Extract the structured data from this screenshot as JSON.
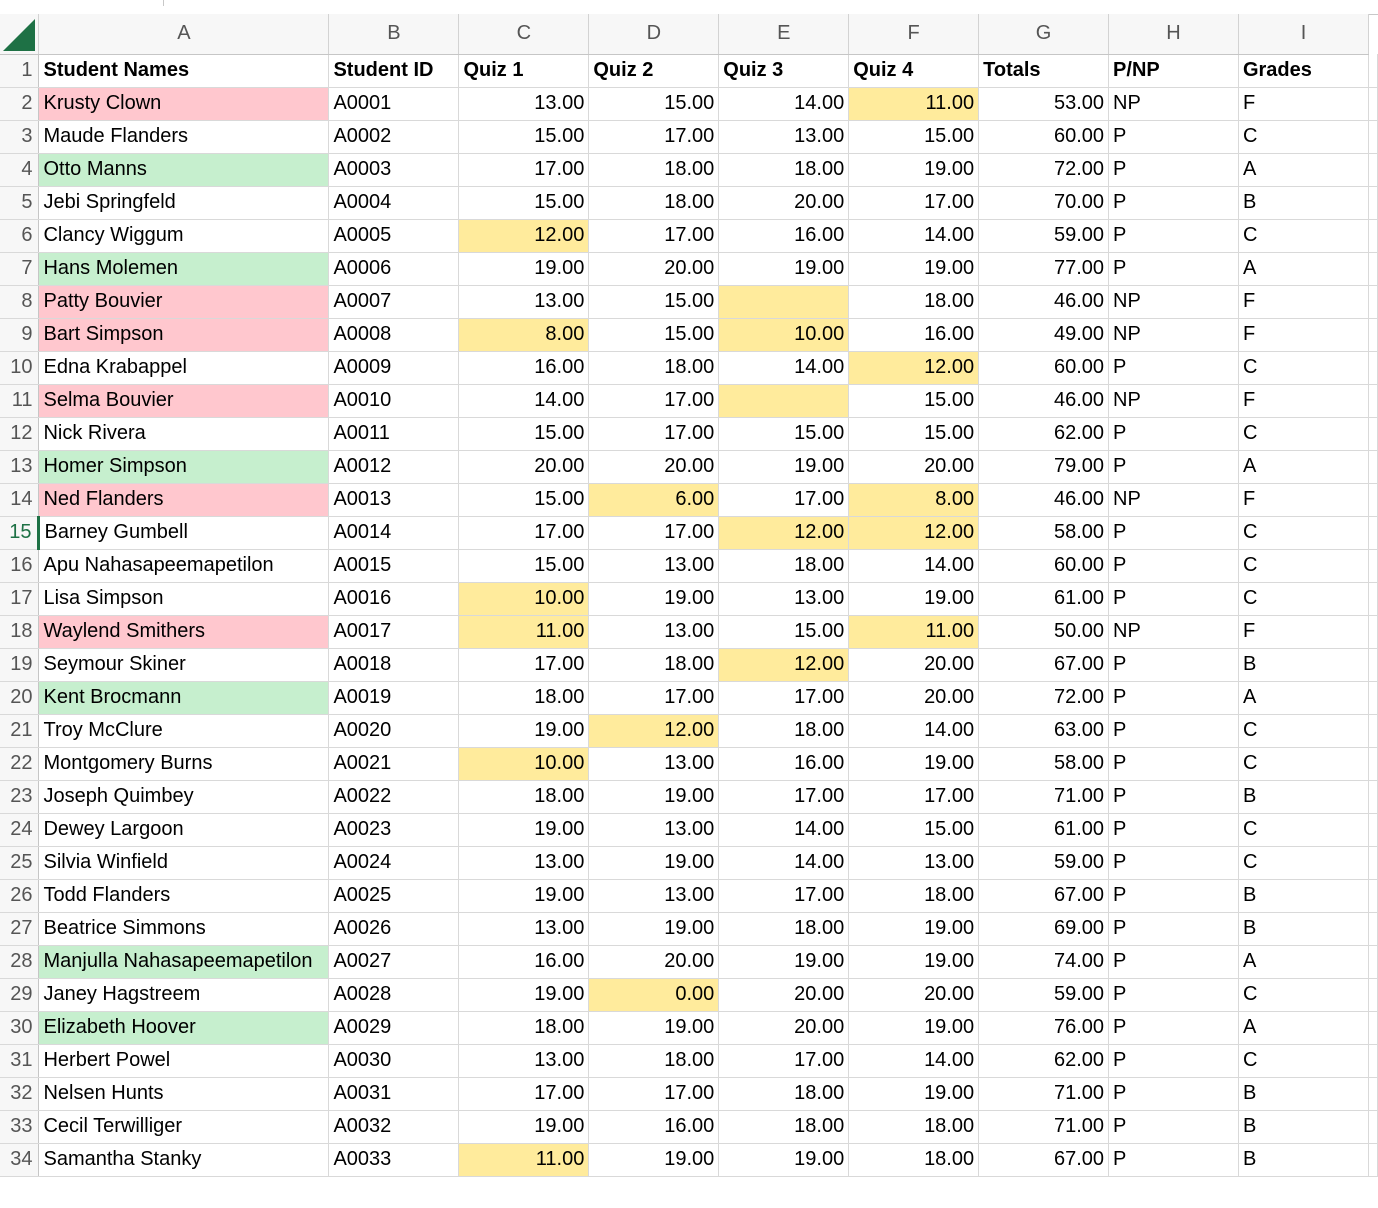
{
  "columns": [
    "A",
    "B",
    "C",
    "D",
    "E",
    "F",
    "G",
    "H",
    "I"
  ],
  "header": [
    "Student Names",
    "Student ID",
    "Quiz 1",
    "Quiz 2",
    "Quiz 3",
    "Quiz 4",
    "Totals",
    "P/NP",
    "Grades"
  ],
  "selected_row": 15,
  "colors": {
    "low_score_fill": "#ffeb9c",
    "low_score_text": "#9c5700",
    "fail_fill": "#ffc7ce",
    "fail_text": "#9c0006",
    "top_fill": "#c6efce",
    "top_text": "#006100",
    "accent": "#1e7145"
  },
  "rows": [
    {
      "name": "Krusty Clown",
      "id": "A0001",
      "q": [
        "13.00",
        "15.00",
        "14.00",
        "11.00"
      ],
      "total": "53.00",
      "pnp": "NP",
      "grade": "F",
      "style": "fail",
      "low": [
        3
      ]
    },
    {
      "name": "Maude Flanders",
      "id": "A0002",
      "q": [
        "15.00",
        "17.00",
        "13.00",
        "15.00"
      ],
      "total": "60.00",
      "pnp": "P",
      "grade": "C",
      "style": "",
      "low": []
    },
    {
      "name": "Otto Manns",
      "id": "A0003",
      "q": [
        "17.00",
        "18.00",
        "18.00",
        "19.00"
      ],
      "total": "72.00",
      "pnp": "P",
      "grade": "A",
      "style": "top",
      "low": []
    },
    {
      "name": "Jebi Springfeld",
      "id": "A0004",
      "q": [
        "15.00",
        "18.00",
        "20.00",
        "17.00"
      ],
      "total": "70.00",
      "pnp": "P",
      "grade": "B",
      "style": "",
      "low": []
    },
    {
      "name": "Clancy Wiggum",
      "id": "A0005",
      "q": [
        "12.00",
        "17.00",
        "16.00",
        "14.00"
      ],
      "total": "59.00",
      "pnp": "P",
      "grade": "C",
      "style": "",
      "low": [
        0
      ]
    },
    {
      "name": "Hans Molemen",
      "id": "A0006",
      "q": [
        "19.00",
        "20.00",
        "19.00",
        "19.00"
      ],
      "total": "77.00",
      "pnp": "P",
      "grade": "A",
      "style": "top",
      "low": []
    },
    {
      "name": "Patty Bouvier",
      "id": "A0007",
      "q": [
        "13.00",
        "15.00",
        "",
        "18.00"
      ],
      "total": "46.00",
      "pnp": "NP",
      "grade": "F",
      "style": "fail",
      "low": [
        2
      ]
    },
    {
      "name": "Bart Simpson",
      "id": "A0008",
      "q": [
        "8.00",
        "15.00",
        "10.00",
        "16.00"
      ],
      "total": "49.00",
      "pnp": "NP",
      "grade": "F",
      "style": "fail",
      "low": [
        0,
        2
      ]
    },
    {
      "name": "Edna Krabappel",
      "id": "A0009",
      "q": [
        "16.00",
        "18.00",
        "14.00",
        "12.00"
      ],
      "total": "60.00",
      "pnp": "P",
      "grade": "C",
      "style": "",
      "low": [
        3
      ]
    },
    {
      "name": "Selma Bouvier",
      "id": "A0010",
      "q": [
        "14.00",
        "17.00",
        "",
        "15.00"
      ],
      "total": "46.00",
      "pnp": "NP",
      "grade": "F",
      "style": "fail",
      "low": [
        2
      ]
    },
    {
      "name": "Nick Rivera",
      "id": "A0011",
      "q": [
        "15.00",
        "17.00",
        "15.00",
        "15.00"
      ],
      "total": "62.00",
      "pnp": "P",
      "grade": "C",
      "style": "",
      "low": []
    },
    {
      "name": "Homer Simpson",
      "id": "A0012",
      "q": [
        "20.00",
        "20.00",
        "19.00",
        "20.00"
      ],
      "total": "79.00",
      "pnp": "P",
      "grade": "A",
      "style": "top",
      "low": []
    },
    {
      "name": "Ned Flanders",
      "id": "A0013",
      "q": [
        "15.00",
        "6.00",
        "17.00",
        "8.00"
      ],
      "total": "46.00",
      "pnp": "NP",
      "grade": "F",
      "style": "fail",
      "low": [
        1,
        3
      ]
    },
    {
      "name": "Barney Gumbell",
      "id": "A0014",
      "q": [
        "17.00",
        "17.00",
        "12.00",
        "12.00"
      ],
      "total": "58.00",
      "pnp": "P",
      "grade": "C",
      "style": "",
      "low": [
        2,
        3
      ]
    },
    {
      "name": "Apu Nahasapeemapetilon",
      "id": "A0015",
      "q": [
        "15.00",
        "13.00",
        "18.00",
        "14.00"
      ],
      "total": "60.00",
      "pnp": "P",
      "grade": "C",
      "style": "",
      "low": []
    },
    {
      "name": "Lisa Simpson",
      "id": "A0016",
      "q": [
        "10.00",
        "19.00",
        "13.00",
        "19.00"
      ],
      "total": "61.00",
      "pnp": "P",
      "grade": "C",
      "style": "",
      "low": [
        0
      ]
    },
    {
      "name": "Waylend Smithers",
      "id": "A0017",
      "q": [
        "11.00",
        "13.00",
        "15.00",
        "11.00"
      ],
      "total": "50.00",
      "pnp": "NP",
      "grade": "F",
      "style": "fail",
      "low": [
        0,
        3
      ]
    },
    {
      "name": "Seymour Skiner",
      "id": "A0018",
      "q": [
        "17.00",
        "18.00",
        "12.00",
        "20.00"
      ],
      "total": "67.00",
      "pnp": "P",
      "grade": "B",
      "style": "",
      "low": [
        2
      ]
    },
    {
      "name": "Kent Brocmann",
      "id": "A0019",
      "q": [
        "18.00",
        "17.00",
        "17.00",
        "20.00"
      ],
      "total": "72.00",
      "pnp": "P",
      "grade": "A",
      "style": "top",
      "low": []
    },
    {
      "name": "Troy McClure",
      "id": "A0020",
      "q": [
        "19.00",
        "12.00",
        "18.00",
        "14.00"
      ],
      "total": "63.00",
      "pnp": "P",
      "grade": "C",
      "style": "",
      "low": [
        1
      ]
    },
    {
      "name": "Montgomery Burns",
      "id": "A0021",
      "q": [
        "10.00",
        "13.00",
        "16.00",
        "19.00"
      ],
      "total": "58.00",
      "pnp": "P",
      "grade": "C",
      "style": "",
      "low": [
        0
      ]
    },
    {
      "name": "Joseph Quimbey",
      "id": "A0022",
      "q": [
        "18.00",
        "19.00",
        "17.00",
        "17.00"
      ],
      "total": "71.00",
      "pnp": "P",
      "grade": "B",
      "style": "",
      "low": []
    },
    {
      "name": "Dewey Largoon",
      "id": "A0023",
      "q": [
        "19.00",
        "13.00",
        "14.00",
        "15.00"
      ],
      "total": "61.00",
      "pnp": "P",
      "grade": "C",
      "style": "",
      "low": []
    },
    {
      "name": "Silvia Winfield",
      "id": "A0024",
      "q": [
        "13.00",
        "19.00",
        "14.00",
        "13.00"
      ],
      "total": "59.00",
      "pnp": "P",
      "grade": "C",
      "style": "",
      "low": []
    },
    {
      "name": "Todd Flanders",
      "id": "A0025",
      "q": [
        "19.00",
        "13.00",
        "17.00",
        "18.00"
      ],
      "total": "67.00",
      "pnp": "P",
      "grade": "B",
      "style": "",
      "low": []
    },
    {
      "name": "Beatrice Simmons",
      "id": "A0026",
      "q": [
        "13.00",
        "19.00",
        "18.00",
        "19.00"
      ],
      "total": "69.00",
      "pnp": "P",
      "grade": "B",
      "style": "",
      "low": []
    },
    {
      "name": "Manjulla Nahasapeemapetilon",
      "id": "A0027",
      "q": [
        "16.00",
        "20.00",
        "19.00",
        "19.00"
      ],
      "total": "74.00",
      "pnp": "P",
      "grade": "A",
      "style": "top",
      "low": []
    },
    {
      "name": "Janey Hagstreem",
      "id": "A0028",
      "q": [
        "19.00",
        "0.00",
        "20.00",
        "20.00"
      ],
      "total": "59.00",
      "pnp": "P",
      "grade": "C",
      "style": "",
      "low": [
        1
      ]
    },
    {
      "name": "Elizabeth Hoover",
      "id": "A0029",
      "q": [
        "18.00",
        "19.00",
        "20.00",
        "19.00"
      ],
      "total": "76.00",
      "pnp": "P",
      "grade": "A",
      "style": "top",
      "low": []
    },
    {
      "name": "Herbert Powel",
      "id": "A0030",
      "q": [
        "13.00",
        "18.00",
        "17.00",
        "14.00"
      ],
      "total": "62.00",
      "pnp": "P",
      "grade": "C",
      "style": "",
      "low": []
    },
    {
      "name": "Nelsen Hunts",
      "id": "A0031",
      "q": [
        "17.00",
        "17.00",
        "18.00",
        "19.00"
      ],
      "total": "71.00",
      "pnp": "P",
      "grade": "B",
      "style": "",
      "low": []
    },
    {
      "name": "Cecil Terwilliger",
      "id": "A0032",
      "q": [
        "19.00",
        "16.00",
        "18.00",
        "18.00"
      ],
      "total": "71.00",
      "pnp": "P",
      "grade": "B",
      "style": "",
      "low": []
    },
    {
      "name": "Samantha Stanky",
      "id": "A0033",
      "q": [
        "11.00",
        "19.00",
        "19.00",
        "18.00"
      ],
      "total": "67.00",
      "pnp": "P",
      "grade": "B",
      "style": "",
      "low": [
        0
      ]
    }
  ]
}
